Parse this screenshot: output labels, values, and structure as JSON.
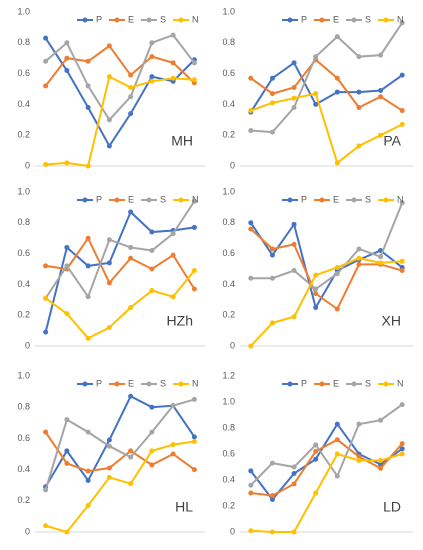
{
  "chart_data": [
    {
      "type": "line",
      "title": "MH",
      "ylim": [
        0,
        1
      ],
      "yticks": [
        0,
        0.2,
        0.4,
        0.6,
        0.8,
        {
          "value": 1,
          "label": "1.0"
        }
      ],
      "series": [
        {
          "name": "P",
          "color": "#4472c4",
          "values": [
            0.83,
            0.62,
            0.38,
            0.13,
            0.34,
            0.58,
            0.55,
            0.69
          ]
        },
        {
          "name": "E",
          "color": "#ed7d31",
          "values": [
            0.52,
            0.7,
            0.68,
            0.78,
            0.59,
            0.71,
            0.67,
            0.54
          ]
        },
        {
          "name": "S",
          "color": "#a5a5a5",
          "values": [
            0.68,
            0.8,
            0.52,
            0.3,
            0.45,
            0.8,
            0.85,
            0.67
          ]
        },
        {
          "name": "N",
          "color": "#ffc000",
          "values": [
            0.01,
            0.02,
            0.0,
            0.58,
            0.51,
            0.55,
            0.57,
            0.56
          ]
        }
      ]
    },
    {
      "type": "line",
      "title": "PA",
      "ylim": [
        0,
        1
      ],
      "yticks": [
        0,
        0.2,
        0.4,
        0.6,
        0.8,
        {
          "value": 1,
          "label": "1.0"
        }
      ],
      "series": [
        {
          "name": "P",
          "color": "#4472c4",
          "values": [
            0.35,
            0.57,
            0.67,
            0.4,
            0.48,
            0.48,
            0.49,
            0.59
          ]
        },
        {
          "name": "E",
          "color": "#ed7d31",
          "values": [
            0.57,
            0.47,
            0.51,
            0.69,
            0.57,
            0.38,
            0.45,
            0.36
          ]
        },
        {
          "name": "S",
          "color": "#a5a5a5",
          "values": [
            0.23,
            0.22,
            0.38,
            0.71,
            0.84,
            0.71,
            0.72,
            0.93
          ]
        },
        {
          "name": "N",
          "color": "#ffc000",
          "values": [
            0.36,
            0.41,
            0.44,
            0.47,
            0.02,
            0.13,
            0.2,
            0.27
          ]
        }
      ]
    },
    {
      "type": "line",
      "title": "HZh",
      "ylim": [
        0,
        1
      ],
      "yticks": [
        0,
        0.2,
        0.4,
        0.6,
        0.8,
        {
          "value": 1,
          "label": "1.0"
        }
      ],
      "series": [
        {
          "name": "P",
          "color": "#4472c4",
          "values": [
            0.09,
            0.64,
            0.52,
            0.54,
            0.87,
            0.74,
            0.75,
            0.77
          ]
        },
        {
          "name": "E",
          "color": "#ed7d31",
          "values": [
            0.52,
            0.5,
            0.7,
            0.41,
            0.57,
            0.5,
            0.59,
            0.37
          ]
        },
        {
          "name": "S",
          "color": "#a5a5a5",
          "values": [
            0.31,
            0.52,
            0.32,
            0.69,
            0.64,
            0.62,
            0.73,
            0.94
          ]
        },
        {
          "name": "N",
          "color": "#ffc000",
          "values": [
            0.31,
            0.21,
            0.05,
            0.12,
            0.25,
            0.36,
            0.32,
            0.49
          ]
        }
      ]
    },
    {
      "type": "line",
      "title": "XH",
      "ylim": [
        0,
        1
      ],
      "yticks": [
        0,
        0.2,
        0.4,
        0.6,
        0.8,
        {
          "value": 1,
          "label": "1.0"
        }
      ],
      "series": [
        {
          "name": "P",
          "color": "#4472c4",
          "values": [
            0.8,
            0.59,
            0.79,
            0.25,
            0.49,
            0.56,
            0.62,
            0.51
          ]
        },
        {
          "name": "E",
          "color": "#ed7d31",
          "values": [
            0.76,
            0.63,
            0.66,
            0.34,
            0.24,
            0.53,
            0.53,
            0.49
          ]
        },
        {
          "name": "S",
          "color": "#a5a5a5",
          "values": [
            0.44,
            0.44,
            0.49,
            0.37,
            0.47,
            0.63,
            0.58,
            0.93
          ]
        },
        {
          "name": "N",
          "color": "#ffc000",
          "values": [
            0.0,
            0.15,
            0.19,
            0.46,
            0.51,
            0.57,
            0.54,
            0.55
          ]
        }
      ]
    },
    {
      "type": "line",
      "title": "HL",
      "ylim": [
        0,
        1
      ],
      "yticks": [
        0,
        0.2,
        0.4,
        0.6,
        0.8,
        {
          "value": 1,
          "label": "1.0"
        }
      ],
      "series": [
        {
          "name": "P",
          "color": "#4472c4",
          "values": [
            0.29,
            0.52,
            0.33,
            0.59,
            0.87,
            0.8,
            0.81,
            0.61
          ]
        },
        {
          "name": "E",
          "color": "#ed7d31",
          "values": [
            0.64,
            0.44,
            0.39,
            0.41,
            0.52,
            0.43,
            0.5,
            0.4
          ]
        },
        {
          "name": "S",
          "color": "#a5a5a5",
          "values": [
            0.27,
            0.72,
            0.64,
            0.55,
            0.48,
            0.64,
            0.81,
            0.85
          ]
        },
        {
          "name": "N",
          "color": "#ffc000",
          "values": [
            0.04,
            0.0,
            0.17,
            0.35,
            0.31,
            0.52,
            0.56,
            0.58
          ]
        }
      ]
    },
    {
      "type": "line",
      "title": "LD",
      "ylim": [
        0,
        1.2
      ],
      "yticks": [
        0,
        0.2,
        0.4,
        0.6,
        0.8,
        {
          "value": 1,
          "label": "1.0"
        },
        1.2
      ],
      "series": [
        {
          "name": "P",
          "color": "#4472c4",
          "values": [
            0.47,
            0.25,
            0.45,
            0.56,
            0.83,
            0.6,
            0.52,
            0.64
          ]
        },
        {
          "name": "E",
          "color": "#ed7d31",
          "values": [
            0.3,
            0.28,
            0.37,
            0.62,
            0.71,
            0.58,
            0.49,
            0.68
          ]
        },
        {
          "name": "S",
          "color": "#a5a5a5",
          "values": [
            0.36,
            0.53,
            0.5,
            0.67,
            0.43,
            0.83,
            0.86,
            0.98
          ]
        },
        {
          "name": "N",
          "color": "#ffc000",
          "values": [
            0.01,
            0.0,
            0.0,
            0.3,
            0.6,
            0.55,
            0.55,
            0.6
          ]
        }
      ]
    }
  ]
}
